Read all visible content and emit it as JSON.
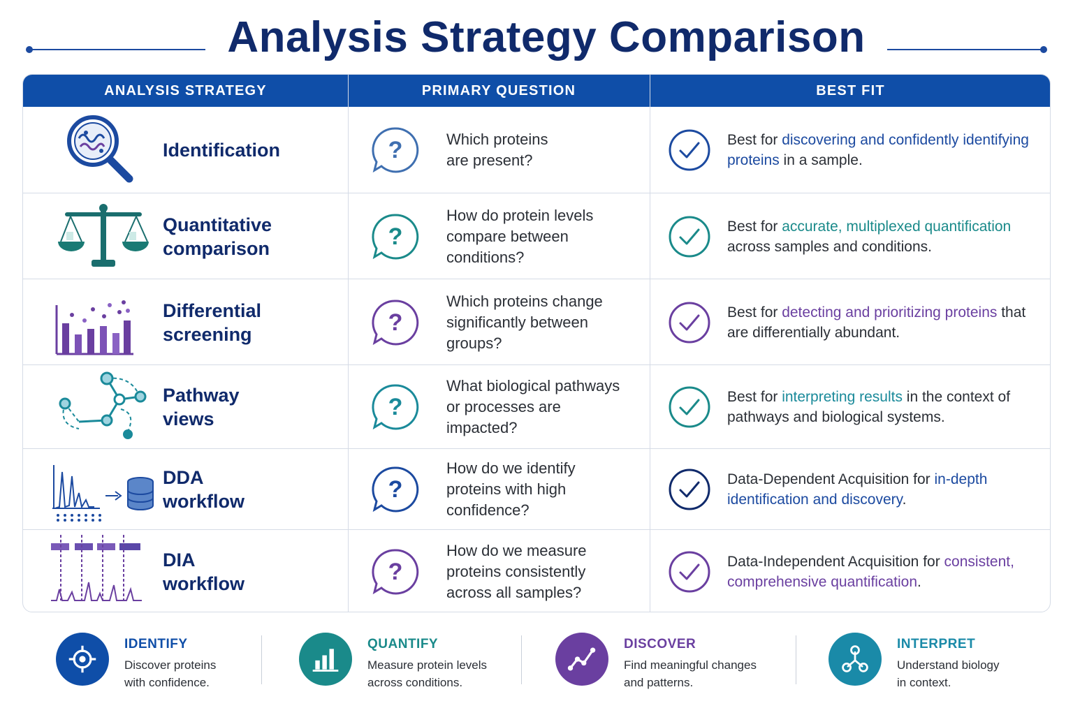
{
  "title": "Analysis Strategy Comparison",
  "headers": [
    "ANALYSIS STRATEGY",
    "PRIMARY QUESTION",
    "BEST FIT"
  ],
  "colors": {
    "navy": "#102a6b",
    "blue": "#1c4aa0",
    "teal": "#1a8a8a",
    "purple": "#6a3fa0",
    "header_bg": "#0f4ea8"
  },
  "rows": [
    {
      "icon": "magnifier-icon",
      "strategy": [
        "Identification"
      ],
      "question": [
        "Which proteins",
        "are present?"
      ],
      "question_icon_color": "#3f6fb0",
      "check_color": "#1c4aa0",
      "fit_pre": "Best for ",
      "fit_highlight": "discovering and confidently identifying proteins",
      "fit_post": " in a sample.",
      "highlight_color": "#1c4aa0"
    },
    {
      "icon": "scale-icon",
      "strategy": [
        "Quantitative",
        "comparison"
      ],
      "question": [
        "How do protein levels",
        "compare between",
        "conditions?"
      ],
      "question_icon_color": "#1a8a8a",
      "check_color": "#1a8a8a",
      "fit_pre": "Best for ",
      "fit_highlight": "accurate, multiplexed quantification",
      "fit_post": " across samples and conditions.",
      "highlight_color": "#1a8a8a"
    },
    {
      "icon": "bar-chart-dots-icon",
      "strategy": [
        "Differential",
        "screening"
      ],
      "question": [
        "Which proteins change",
        "significantly between",
        "groups?"
      ],
      "question_icon_color": "#6a3fa0",
      "check_color": "#6a3fa0",
      "fit_pre": "Best for ",
      "fit_highlight": "detecting and prioritizing proteins",
      "fit_post": " that are differentially abundant.",
      "highlight_color": "#6a3fa0"
    },
    {
      "icon": "network-icon",
      "strategy": [
        "Pathway",
        "views"
      ],
      "question": [
        "What biological pathways",
        "or processes are",
        "impacted?"
      ],
      "question_icon_color": "#1a8a9a",
      "check_color": "#1a8a8a",
      "fit_pre": "Best for ",
      "fit_highlight": "interpreting results",
      "fit_post": " in the context of pathways and biological systems.",
      "highlight_color": "#1a8a9a"
    },
    {
      "icon": "spectrum-database-icon",
      "strategy": [
        "DDA",
        "workflow"
      ],
      "question": [
        "How do we identify",
        "proteins with high",
        "confidence?"
      ],
      "question_icon_color": "#1c4aa0",
      "check_color": "#102a6b",
      "fit_pre": "Data-Dependent Acquisition for ",
      "fit_highlight": "in-depth identification and discovery",
      "fit_post": ".",
      "highlight_color": "#1c4aa0"
    },
    {
      "icon": "dia-windows-icon",
      "strategy": [
        "DIA",
        "workflow"
      ],
      "question": [
        "How do we measure",
        "proteins consistently",
        "across all samples?"
      ],
      "question_icon_color": "#6a3fa0",
      "check_color": "#6a3fa0",
      "fit_pre": "Data-Independent Acquisition for ",
      "fit_highlight": "consistent, comprehensive quantification",
      "fit_post": ".",
      "highlight_color": "#6a3fa0"
    }
  ],
  "footer": [
    {
      "title": "IDENTIFY",
      "desc": [
        "Discover proteins",
        "with confidence."
      ],
      "color": "#0f4ea8",
      "icon": "target-icon"
    },
    {
      "title": "QUANTIFY",
      "desc": [
        "Measure protein levels",
        "across conditions."
      ],
      "color": "#1a8a8a",
      "icon": "bar-chart-icon"
    },
    {
      "title": "DISCOVER",
      "desc": [
        "Find meaningful changes",
        "and patterns."
      ],
      "color": "#6a3fa0",
      "icon": "trend-line-icon"
    },
    {
      "title": "INTERPRET",
      "desc": [
        "Understand biology",
        "in context."
      ],
      "color": "#1a8aa8",
      "icon": "network-nodes-icon"
    }
  ]
}
